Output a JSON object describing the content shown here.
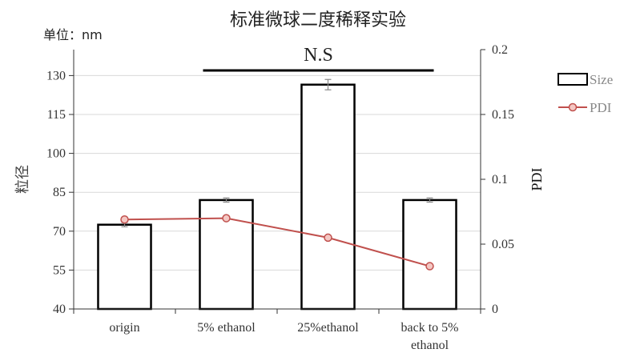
{
  "chart_data": {
    "type": "bar",
    "title": "标准微球二度稀释实验",
    "unit_label": "单位：nm",
    "categories": [
      "origin",
      "5% ethanol",
      "25%ethanol",
      "back to 5%\nethanol"
    ],
    "series": [
      {
        "name": "Size",
        "type": "bar",
        "axis": "left",
        "values": [
          72.5,
          82,
          126.5,
          82
        ],
        "errors": [
          0.8,
          0.8,
          2.0,
          0.8
        ]
      },
      {
        "name": "PDI",
        "type": "line",
        "axis": "right",
        "values": [
          0.069,
          0.07,
          0.055,
          0.033
        ],
        "color": "#c0504d"
      }
    ],
    "y_left": {
      "label": "粒径",
      "min": 40,
      "max": 140,
      "ticks": [
        40,
        55,
        70,
        85,
        100,
        115,
        130
      ]
    },
    "y_right": {
      "label": "PDI",
      "min": 0,
      "max": 0.2,
      "ticks": [
        0,
        0.05,
        0.1,
        0.15,
        0.2
      ],
      "tick_labels": [
        "0",
        "0.05",
        "0.1",
        "0.15",
        "0.2"
      ]
    },
    "annotation": {
      "text": "N.S",
      "from_category": 1,
      "to_category": 3
    },
    "grid": true,
    "legend_position": "right"
  }
}
